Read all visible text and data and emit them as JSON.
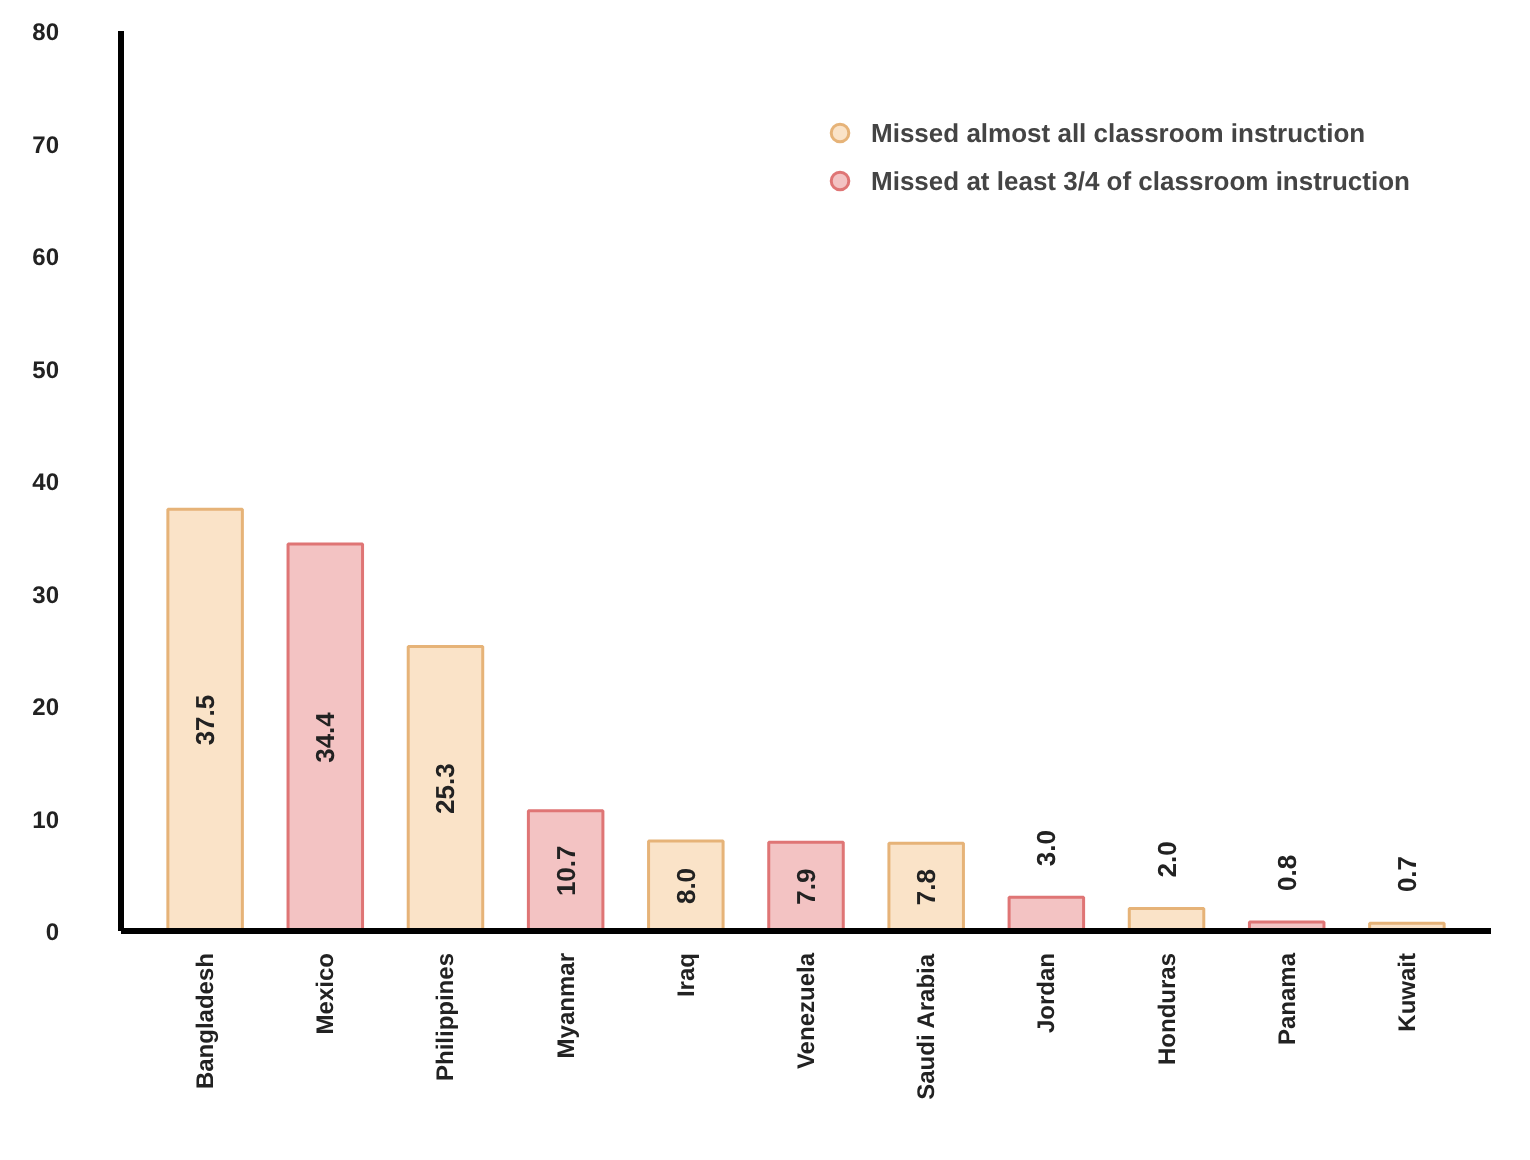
{
  "chart_data": {
    "type": "bar",
    "categories": [
      "Bangladesh",
      "Mexico",
      "Philippines",
      "Myanmar",
      "Iraq",
      "Venezuela",
      "Saudi Arabia",
      "Jordan",
      "Honduras",
      "Panama",
      "Kuwait"
    ],
    "series": [
      {
        "name": "Missed almost all classroom instruction",
        "color": "#fae3c8",
        "values": [
          37.5,
          null,
          25.3,
          null,
          8.0,
          null,
          7.8,
          null,
          2.0,
          null,
          0.7
        ],
        "value_labels": [
          "37.5",
          null,
          "25.3",
          null,
          "8.0",
          null,
          "7.8",
          null,
          "2.0",
          null,
          "0.7"
        ]
      },
      {
        "name": "Missed at least 3/4 of classroom instruction",
        "color": "#f3c3c3",
        "values": [
          null,
          34.4,
          null,
          10.7,
          null,
          7.9,
          null,
          3.0,
          null,
          0.8,
          null
        ],
        "value_labels": [
          null,
          "34.4",
          null,
          "10.7",
          null,
          "7.9",
          null,
          "3.0",
          null,
          "0.8",
          null
        ]
      }
    ],
    "ylim": [
      0,
      80
    ],
    "yticks": [
      0,
      10,
      20,
      30,
      40,
      50,
      60,
      70,
      80
    ],
    "grid": false,
    "legend": "top right"
  }
}
